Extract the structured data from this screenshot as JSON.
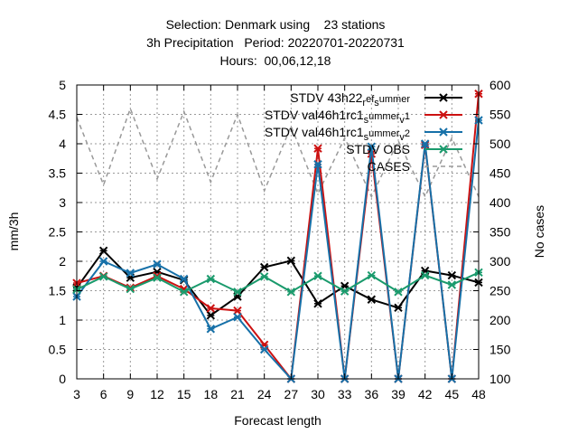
{
  "chart_data": {
    "type": "line",
    "title_lines": [
      "Selection: Denmark using    23 stations",
      "3h Precipitation   Period: 20220701-20220731",
      "Hours:  00,06,12,18"
    ],
    "xlabel": "Forecast length",
    "ylabel": "mm/3h",
    "y2label": "No cases",
    "x": [
      3,
      6,
      9,
      12,
      15,
      18,
      21,
      24,
      27,
      30,
      33,
      36,
      39,
      42,
      45,
      48
    ],
    "xlim": [
      3,
      48
    ],
    "ylim": [
      0,
      5
    ],
    "y2lim": [
      100,
      600
    ],
    "yticks": [
      "0",
      "0.5",
      "1",
      "1.5",
      "2",
      "2.5",
      "3",
      "3.5",
      "4",
      "4.5",
      "5"
    ],
    "y2ticks": [
      "100",
      "150",
      "200",
      "250",
      "300",
      "350",
      "400",
      "450",
      "500",
      "550",
      "600"
    ],
    "grid": true,
    "legend_position": "top-right",
    "series": [
      {
        "name": "STDV 43h22",
        "name_parts": [
          "STDV 43h22",
          "r",
          "ef",
          "s",
          "ummer"
        ],
        "color": "#000000",
        "marker": "x",
        "axis": "y1",
        "values": [
          1.55,
          2.18,
          1.72,
          1.82,
          1.68,
          1.08,
          1.4,
          1.9,
          2.01,
          1.28,
          1.58,
          1.35,
          1.21,
          1.84,
          1.76,
          1.64
        ]
      },
      {
        "name": "STDV val46h1rc1",
        "name_parts": [
          "STDV val46h1rc1",
          "s",
          "ummer",
          "v",
          "1"
        ],
        "color": "#cc1111",
        "marker": "x",
        "axis": "y1",
        "values": [
          1.63,
          1.75,
          1.55,
          1.75,
          1.53,
          1.2,
          1.16,
          0.58,
          0.0,
          3.92,
          0.0,
          3.83,
          0.0,
          3.98,
          0.0,
          4.85
        ]
      },
      {
        "name": "STDV val46h1rc1",
        "name_parts": [
          "STDV val46h1rc1",
          "s",
          "ummer",
          "v",
          "2"
        ],
        "color": "#1670a8",
        "marker": "x",
        "axis": "y1",
        "values": [
          1.4,
          2.0,
          1.8,
          1.95,
          1.7,
          0.85,
          1.05,
          0.5,
          0.0,
          3.65,
          0.0,
          3.95,
          0.0,
          4.0,
          0.0,
          4.4
        ]
      },
      {
        "name": "STDV OBS",
        "name_parts": [
          "STDV OBS"
        ],
        "color": "#1a9a6c",
        "marker": "x",
        "axis": "y1",
        "values": [
          1.52,
          1.74,
          1.53,
          1.72,
          1.48,
          1.7,
          1.48,
          1.74,
          1.48,
          1.75,
          1.49,
          1.76,
          1.48,
          1.76,
          1.6,
          1.81
        ]
      },
      {
        "name": "CASES",
        "name_parts": [
          "CASES"
        ],
        "color": "#999999",
        "marker": "none",
        "dashed": true,
        "axis": "y2",
        "values": [
          545,
          430,
          560,
          440,
          555,
          435,
          550,
          420,
          530,
          415,
          510,
          410,
          505,
          410,
          510,
          410
        ]
      }
    ]
  }
}
